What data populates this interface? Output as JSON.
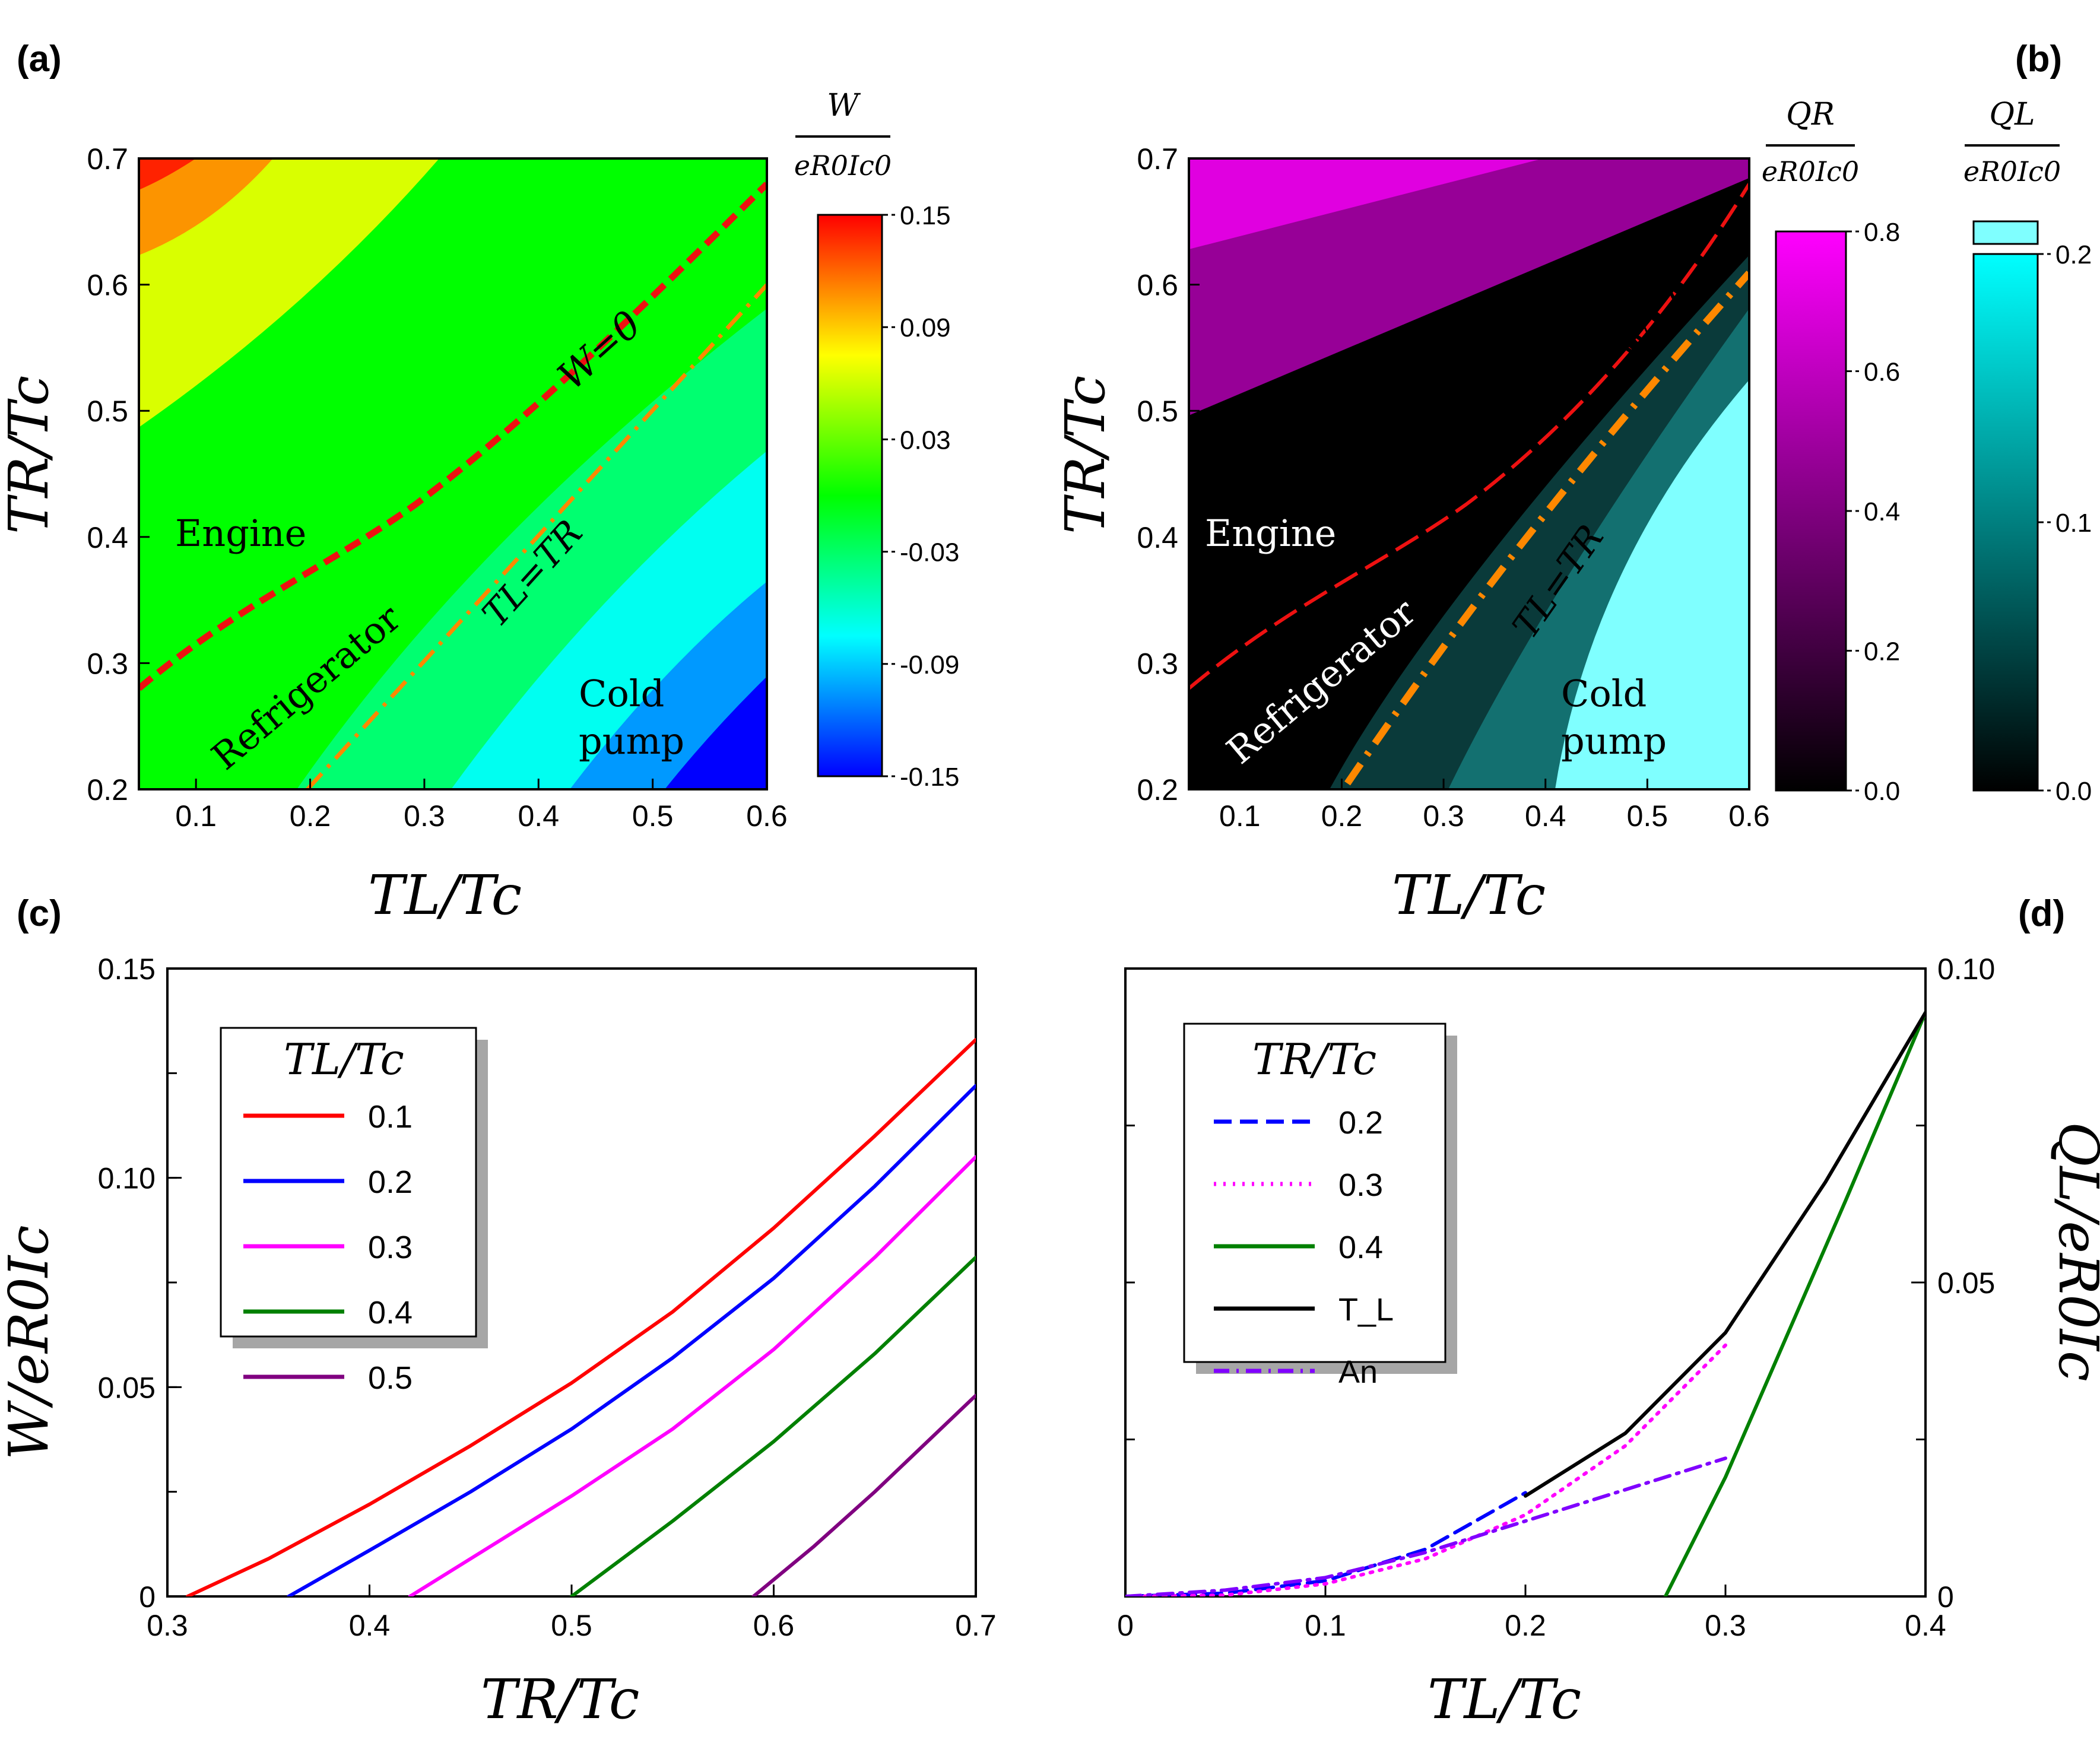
{
  "panel_labels": [
    "(a)",
    "(b)",
    "(c)",
    "(d)"
  ],
  "colorbars": {
    "W": {
      "title_num": "W",
      "title_den": "eR0Ic0",
      "ticks": [
        "0.15",
        "0.09",
        "0.03",
        "-0.03",
        "-0.09",
        "-0.15"
      ],
      "colors": [
        "#ff0000",
        "#ffff00",
        "#00ff00",
        "#00ffff",
        "#0000ff"
      ]
    },
    "QR": {
      "title_num": "QR",
      "title_den": "eR0Ic0",
      "ticks": [
        "0.8",
        "0.6",
        "0.4",
        "0.2",
        "0.0"
      ],
      "colors": [
        "#ff00ff",
        "#000000"
      ]
    },
    "QL": {
      "title_num": "QL",
      "title_den": "eR0Ic0",
      "ticks": [
        "0.2",
        "0.1",
        "0.0"
      ],
      "colors": [
        "#00ffff",
        "#000000"
      ]
    }
  },
  "region_labels": {
    "engine": "Engine",
    "refrigerator": "Refrigerator",
    "cold1": "Cold",
    "cold2": "pump"
  },
  "curve_labels": {
    "w0": "W=0",
    "tl_tr": "TL=TR"
  },
  "axis_labels": {
    "a_x": "TL/Tc",
    "a_y": "TR/Tc",
    "c_x": "TR/Tc",
    "c_y": "W/eR0Ic",
    "d_x": "TL/Tc",
    "d_y": "QL/eR0Ic"
  },
  "legend_c": {
    "title": "TL/Tc"
  },
  "legend_d": {
    "title": "TR/Tc"
  },
  "chart_data": [
    {
      "panel": "(a)",
      "type": "heatmap",
      "xlabel": "T_L/T_c",
      "ylabel": "T_R/T_c",
      "xlim": [
        0.05,
        0.6
      ],
      "ylim": [
        0.2,
        0.7
      ],
      "xticks": [
        "0.1",
        "0.2",
        "0.3",
        "0.4",
        "0.5",
        "0.6"
      ],
      "yticks": [
        "0.2",
        "0.3",
        "0.4",
        "0.5",
        "0.6",
        "0.7"
      ],
      "colorbar_title": "W / eR_0 I_c0",
      "colorbar_range": [
        -0.15,
        0.15
      ],
      "overlays": [
        {
          "label": "W=0",
          "x": [
            0.05,
            0.1,
            0.15,
            0.2,
            0.25,
            0.3,
            0.35,
            0.4,
            0.45,
            0.5,
            0.55,
            0.6
          ],
          "y": [
            0.275,
            0.3,
            0.32,
            0.35,
            0.37,
            0.4,
            0.43,
            0.465,
            0.51,
            0.55,
            0.6,
            0.675
          ]
        },
        {
          "label": "T_L=T_R",
          "x": [
            0.2,
            0.6
          ],
          "y": [
            0.2,
            0.6
          ]
        }
      ],
      "annotations": [
        "Engine",
        "Refrigerator",
        "Cold pump"
      ]
    },
    {
      "panel": "(b)",
      "type": "heatmap",
      "xlabel": "T_L/T_c",
      "ylabel": "T_R/T_c",
      "xlim": [
        0.05,
        0.6
      ],
      "ylim": [
        0.2,
        0.7
      ],
      "xticks": [
        "0.1",
        "0.2",
        "0.3",
        "0.4",
        "0.5",
        "0.6"
      ],
      "yticks": [
        "0.2",
        "0.3",
        "0.4",
        "0.5",
        "0.6",
        "0.7"
      ],
      "colorbars": [
        {
          "title": "Q_R / eR_0 I_c0",
          "range": [
            0.0,
            0.8
          ]
        },
        {
          "title": "Q_L / eR_0 I_c0",
          "range": [
            0.0,
            0.2
          ]
        }
      ],
      "overlays": [
        {
          "label": "W=0",
          "x": [
            0.05,
            0.1,
            0.15,
            0.2,
            0.25,
            0.3,
            0.35,
            0.4,
            0.45,
            0.5,
            0.55,
            0.6
          ],
          "y": [
            0.275,
            0.3,
            0.32,
            0.35,
            0.37,
            0.4,
            0.43,
            0.465,
            0.51,
            0.55,
            0.6,
            0.675
          ]
        },
        {
          "label": "T_L=T_R",
          "x": [
            0.2,
            0.6
          ],
          "y": [
            0.2,
            0.6
          ]
        }
      ],
      "annotations": [
        "Engine",
        "Refrigerator",
        "Cold pump"
      ]
    },
    {
      "panel": "(c)",
      "type": "line",
      "xlabel": "T_R/T_c",
      "ylabel": "W/eR_0 I_c",
      "xlim": [
        0.3,
        0.7
      ],
      "ylim": [
        0,
        0.15
      ],
      "xticks": [
        "0.3",
        "0.4",
        "0.5",
        "0.6",
        "0.7"
      ],
      "yticks": [
        "0",
        "0.05",
        "0.10",
        "0.15"
      ],
      "legend_title": "T_L/T_c",
      "series": [
        {
          "name": "0.1",
          "color": "#ff0000",
          "x": [
            0.31,
            0.35,
            0.4,
            0.45,
            0.5,
            0.55,
            0.6,
            0.65,
            0.7
          ],
          "y": [
            0.0,
            0.009,
            0.022,
            0.036,
            0.051,
            0.068,
            0.088,
            0.11,
            0.133
          ]
        },
        {
          "name": "0.2",
          "color": "#0000ff",
          "x": [
            0.36,
            0.4,
            0.45,
            0.5,
            0.55,
            0.6,
            0.65,
            0.7
          ],
          "y": [
            0.0,
            0.011,
            0.025,
            0.04,
            0.057,
            0.076,
            0.098,
            0.122
          ]
        },
        {
          "name": "0.3",
          "color": "#ff00ff",
          "x": [
            0.42,
            0.45,
            0.5,
            0.55,
            0.6,
            0.65,
            0.7
          ],
          "y": [
            0.0,
            0.009,
            0.024,
            0.04,
            0.059,
            0.081,
            0.105
          ]
        },
        {
          "name": "0.4",
          "color": "#008000",
          "x": [
            0.5,
            0.55,
            0.6,
            0.65,
            0.7
          ],
          "y": [
            0.0,
            0.018,
            0.037,
            0.058,
            0.081
          ]
        },
        {
          "name": "0.5",
          "color": "#800080",
          "x": [
            0.59,
            0.62,
            0.65,
            0.7
          ],
          "y": [
            0.0,
            0.012,
            0.025,
            0.048
          ]
        }
      ]
    },
    {
      "panel": "(d)",
      "type": "line",
      "xlabel": "T_L/T_c",
      "ylabel": "Q_L/eR_0 I_c",
      "xlim": [
        0,
        0.4
      ],
      "ylim": [
        0,
        0.1
      ],
      "xticks": [
        "0",
        "0.1",
        "0.2",
        "0.3",
        "0.4"
      ],
      "yticks": [
        "0",
        "0.05",
        "0.10"
      ],
      "legend_title": "T_R/T_c",
      "series": [
        {
          "name": "0.2",
          "color": "#0000ff",
          "style": "dashed",
          "x": [
            0.0,
            0.05,
            0.1,
            0.15,
            0.2
          ],
          "y": [
            0.0,
            0.0005,
            0.0025,
            0.0075,
            0.0165
          ]
        },
        {
          "name": "0.3",
          "color": "#ff00ff",
          "style": "dotted",
          "x": [
            0.0,
            0.05,
            0.1,
            0.15,
            0.2,
            0.25,
            0.3
          ],
          "y": [
            0.0,
            0.0002,
            0.002,
            0.006,
            0.013,
            0.024,
            0.04
          ]
        },
        {
          "name": "0.4",
          "color": "#008000",
          "style": "solid",
          "x": [
            0.27,
            0.3,
            0.33,
            0.36,
            0.4
          ],
          "y": [
            0.0,
            0.019,
            0.041,
            0.063,
            0.093
          ]
        },
        {
          "name": "T_L",
          "color": "#000000",
          "style": "solid",
          "x": [
            0.2,
            0.25,
            0.3,
            0.35,
            0.4
          ],
          "y": [
            0.016,
            0.026,
            0.042,
            0.066,
            0.093
          ]
        },
        {
          "name": "An",
          "color": "#8000ff",
          "style": "dashdot",
          "x": [
            0.0,
            0.05,
            0.1,
            0.15,
            0.2,
            0.25,
            0.3
          ],
          "y": [
            0.0,
            0.001,
            0.003,
            0.007,
            0.012,
            0.017,
            0.022
          ]
        }
      ]
    }
  ]
}
